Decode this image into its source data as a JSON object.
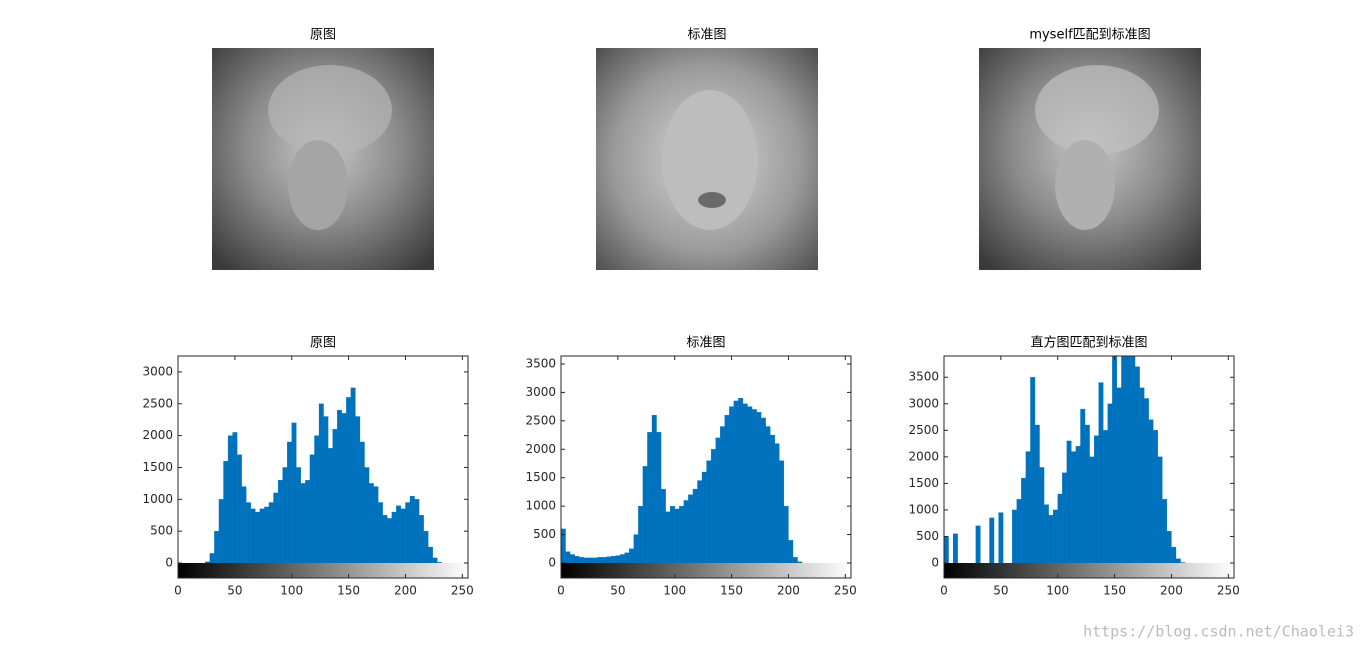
{
  "images": [
    {
      "title": "原图"
    },
    {
      "title": "标准图"
    },
    {
      "title": "myself匹配到标准图"
    }
  ],
  "watermark": "https://blog.csdn.net/Chaolei3",
  "chart_data": [
    {
      "type": "histogram",
      "title": "原图",
      "color": "#0072bd",
      "bins": [
        0,
        4,
        8,
        12,
        16,
        20,
        24,
        28,
        32,
        36,
        40,
        44,
        48,
        52,
        56,
        60,
        64,
        68,
        72,
        76,
        80,
        84,
        88,
        92,
        96,
        100,
        104,
        108,
        112,
        116,
        120,
        124,
        128,
        132,
        136,
        140,
        144,
        148,
        152,
        156,
        160,
        164,
        168,
        172,
        176,
        180,
        184,
        188,
        192,
        196,
        200,
        204,
        208,
        212,
        216,
        220,
        224,
        228,
        232,
        236,
        240,
        244,
        248,
        252,
        256
      ],
      "values": [
        0,
        0,
        0,
        0,
        0,
        0,
        20,
        150,
        500,
        1000,
        1600,
        2000,
        2050,
        1700,
        1200,
        950,
        850,
        800,
        850,
        880,
        950,
        1100,
        1300,
        1500,
        1900,
        2200,
        1500,
        1250,
        1300,
        1700,
        2000,
        2500,
        2300,
        1800,
        2100,
        2400,
        2350,
        2600,
        2750,
        2300,
        1900,
        1500,
        1250,
        1200,
        950,
        750,
        700,
        800,
        900,
        850,
        950,
        1050,
        1000,
        750,
        500,
        250,
        80,
        10,
        0,
        0,
        0,
        0,
        0,
        0
      ],
      "xlim": [
        0,
        255
      ],
      "ylim": [
        0,
        3250
      ],
      "xticks": [
        0,
        50,
        100,
        150,
        200,
        250
      ],
      "yticks": [
        0,
        500,
        1000,
        1500,
        2000,
        2500,
        3000
      ]
    },
    {
      "type": "histogram",
      "title": "标准图",
      "color": "#0072bd",
      "bins": [
        0,
        4,
        8,
        12,
        16,
        20,
        24,
        28,
        32,
        36,
        40,
        44,
        48,
        52,
        56,
        60,
        64,
        68,
        72,
        76,
        80,
        84,
        88,
        92,
        96,
        100,
        104,
        108,
        112,
        116,
        120,
        124,
        128,
        132,
        136,
        140,
        144,
        148,
        152,
        156,
        160,
        164,
        168,
        172,
        176,
        180,
        184,
        188,
        192,
        196,
        200,
        204,
        208,
        212,
        216,
        220,
        224,
        228,
        232,
        236,
        240,
        244,
        248,
        252,
        256
      ],
      "values": [
        600,
        200,
        150,
        120,
        100,
        90,
        90,
        90,
        100,
        100,
        110,
        120,
        130,
        150,
        180,
        250,
        500,
        1000,
        1700,
        2300,
        2600,
        2300,
        1300,
        900,
        1000,
        950,
        1000,
        1100,
        1200,
        1300,
        1450,
        1600,
        1800,
        2000,
        2200,
        2400,
        2600,
        2750,
        2850,
        2900,
        2800,
        2750,
        2700,
        2650,
        2550,
        2400,
        2250,
        2100,
        1800,
        1000,
        400,
        100,
        20,
        0,
        0,
        0,
        0,
        0,
        0,
        0,
        0,
        0,
        0,
        0
      ],
      "xlim": [
        0,
        255
      ],
      "ylim": [
        0,
        3640
      ],
      "xticks": [
        0,
        50,
        100,
        150,
        200,
        250
      ],
      "yticks": [
        0,
        500,
        1000,
        1500,
        2000,
        2500,
        3000,
        3500
      ]
    },
    {
      "type": "histogram",
      "title": "直方图匹配到标准图",
      "color": "#0072bd",
      "bins": [
        0,
        4,
        8,
        12,
        16,
        20,
        24,
        28,
        32,
        36,
        40,
        44,
        48,
        52,
        56,
        60,
        64,
        68,
        72,
        76,
        80,
        84,
        88,
        92,
        96,
        100,
        104,
        108,
        112,
        116,
        120,
        124,
        128,
        132,
        136,
        140,
        144,
        148,
        152,
        156,
        160,
        164,
        168,
        172,
        176,
        180,
        184,
        188,
        192,
        196,
        200,
        204,
        208,
        212,
        216,
        220,
        224,
        228,
        232,
        236,
        240,
        244,
        248,
        252,
        256
      ],
      "values": [
        500,
        0,
        550,
        0,
        0,
        0,
        0,
        700,
        0,
        0,
        850,
        0,
        950,
        0,
        0,
        1000,
        1200,
        1600,
        2100,
        3500,
        2600,
        1800,
        1100,
        900,
        1000,
        1300,
        1700,
        2300,
        2100,
        2200,
        2900,
        2600,
        2000,
        2400,
        3400,
        2500,
        3000,
        3900,
        3300,
        3900,
        3900,
        3900,
        3700,
        3300,
        3100,
        2700,
        2500,
        2000,
        1200,
        600,
        300,
        80,
        10,
        0,
        0,
        0,
        0,
        0,
        0,
        0,
        0,
        0,
        0,
        0
      ],
      "xlim": [
        0,
        255
      ],
      "ylim": [
        0,
        3900
      ],
      "xticks": [
        0,
        50,
        100,
        150,
        200,
        250
      ],
      "yticks": [
        0,
        500,
        1000,
        1500,
        2000,
        2500,
        3000,
        3500
      ]
    }
  ]
}
